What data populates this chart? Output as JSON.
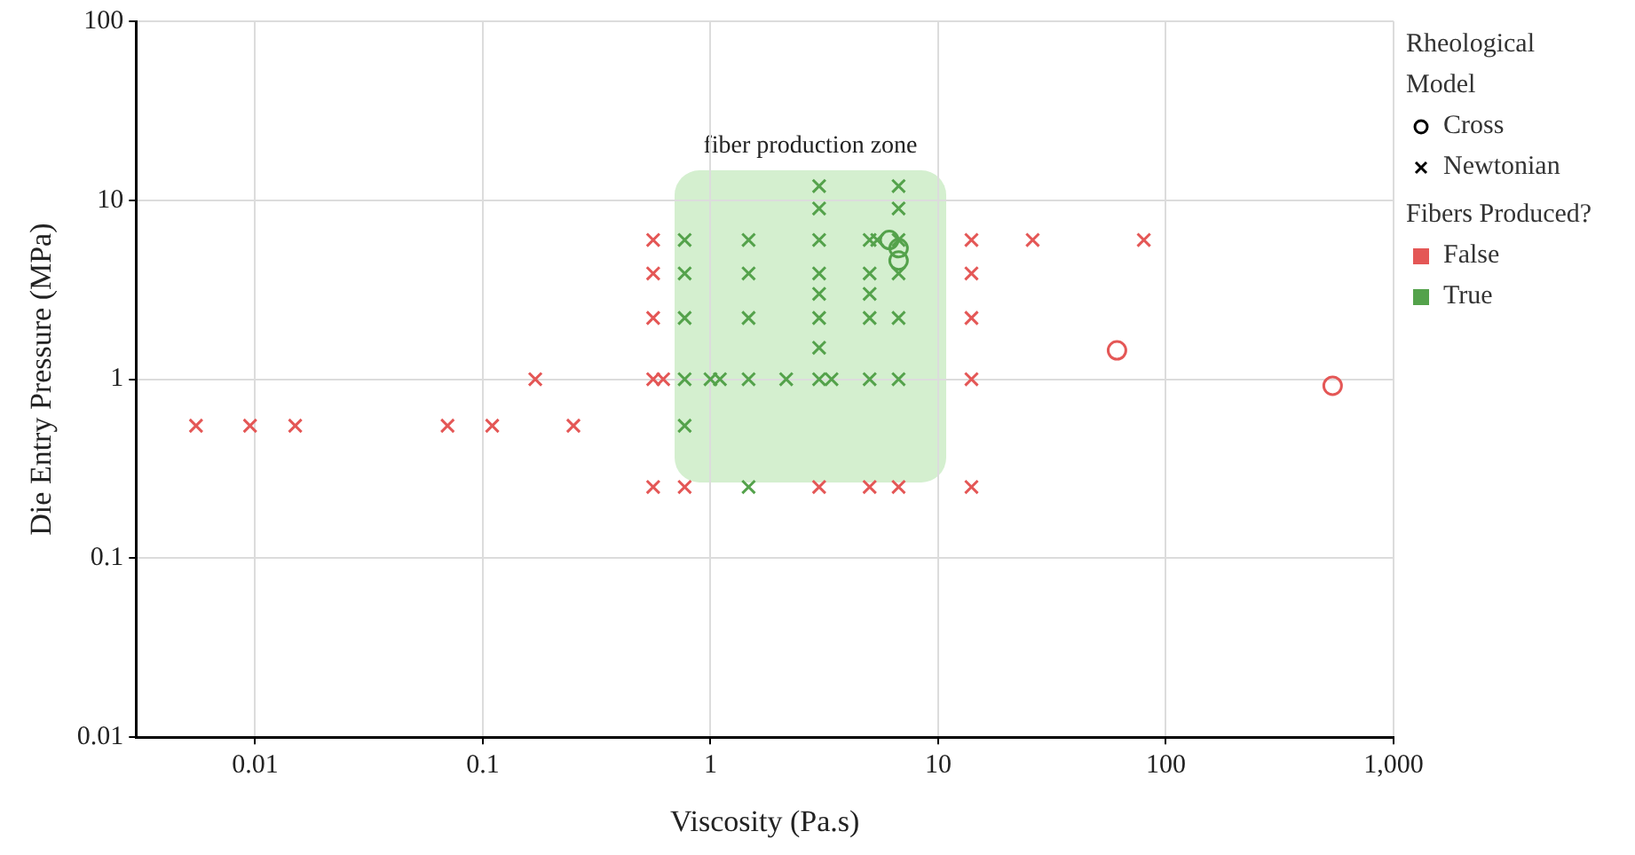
{
  "chart_data": {
    "type": "scatter",
    "xlabel": "Viscosity (Pa.s)",
    "ylabel": "Die Entry Pressure (MPa)",
    "log": "xy",
    "grid": true,
    "legend": "top right",
    "legend_title": "Fibers Produced?",
    "xlim": [
      0.003,
      1000
    ],
    "ylim": [
      0.01,
      100
    ],
    "xticks": [
      0.01,
      0.1,
      1,
      10,
      100,
      {
        "value": 1000,
        "label": "1,000"
      }
    ],
    "yticks": [
      0.01,
      0.1,
      1,
      10,
      100
    ],
    "annotations": [
      "Rheological Model",
      "Cross",
      "Newtonian",
      "fiber production zone"
    ],
    "series": [
      {
        "color": "#e45756",
        "marker": "circle",
        "x": [
          61,
          540
        ],
        "values": [
          1.45,
          0.92
        ]
      },
      {
        "name": "False",
        "color": "#e45756",
        "marker": "cross",
        "x": [
          0.0055,
          0.0095,
          0.015,
          0.07,
          0.11,
          0.25,
          0.17,
          0.56,
          0.56,
          0.56,
          0.56,
          0.62,
          0.56,
          0.77,
          3,
          5,
          6.7,
          14,
          14,
          14,
          14,
          14,
          26,
          80
        ],
        "values": [
          0.55,
          0.55,
          0.55,
          0.55,
          0.55,
          0.55,
          1,
          6,
          3.9,
          2.2,
          1,
          1,
          0.25,
          0.25,
          0.25,
          0.25,
          0.25,
          6,
          3.9,
          2.2,
          1,
          0.25,
          6,
          6
        ]
      },
      {
        "name": "True",
        "color": "#54a24b",
        "marker": "cross",
        "x": [
          0.77,
          0.77,
          0.77,
          0.77,
          0.77,
          1.0,
          1.1,
          1.47,
          1.47,
          1.47,
          1.47,
          1.47,
          2.15,
          3,
          3,
          3,
          3,
          3,
          3,
          3,
          3,
          3.4,
          5,
          5,
          5,
          5,
          5,
          5.4,
          6.7,
          6.7,
          6.7,
          6.7,
          6.7,
          6.7
        ],
        "values": [
          6,
          3.9,
          2.2,
          1,
          0.55,
          1,
          1,
          6,
          3.9,
          2.2,
          1,
          0.25,
          1,
          12,
          9,
          6,
          3.9,
          3,
          2.2,
          1.5,
          1,
          1,
          6,
          3.9,
          3,
          2.2,
          1,
          6,
          12,
          9,
          6,
          3.9,
          2.2,
          1
        ]
      },
      {
        "color": "#54a24b",
        "marker": "circle",
        "x": [
          6.1,
          6.7,
          6.7
        ],
        "values": [
          6,
          5.4,
          4.6
        ]
      }
    ]
  }
}
